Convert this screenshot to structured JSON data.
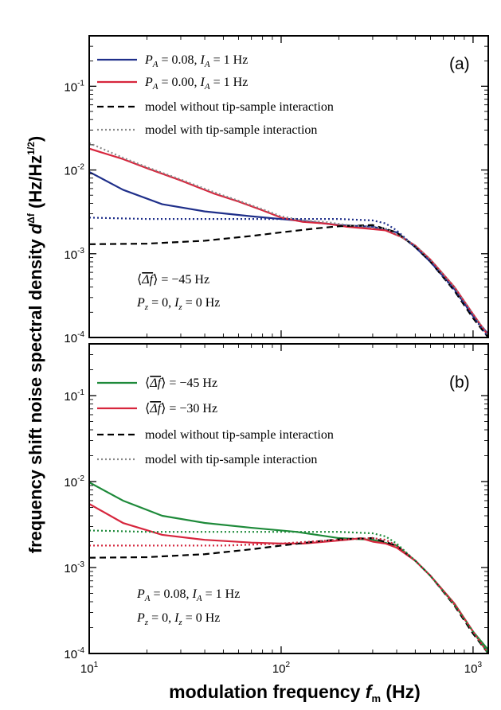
{
  "chart_data": [
    {
      "type": "line",
      "panel_label": "(a)",
      "x_scale": "log",
      "y_scale": "log",
      "xlim": [
        10,
        1200
      ],
      "ylim": [
        0.0001,
        0.4
      ],
      "series": [
        {
          "name": "P_A = 0.08,  I_A = 1 Hz",
          "color": "#1f2f8a",
          "style": "solid",
          "x": [
            10,
            15,
            24,
            40,
            70,
            120,
            200,
            300,
            400,
            500,
            600,
            800,
            1000,
            1200
          ],
          "y": [
            0.0095,
            0.0058,
            0.0039,
            0.0032,
            0.0028,
            0.0025,
            0.0022,
            0.0021,
            0.0018,
            0.0012,
            0.0008,
            0.00038,
            0.00018,
            0.00011
          ]
        },
        {
          "name": "P_A = 0.00,  I_A = 1 Hz",
          "color": "#d7263d",
          "style": "solid",
          "x": [
            10,
            15,
            20,
            30,
            45,
            60,
            80,
            100,
            130,
            170,
            220,
            280,
            350,
            420,
            500,
            600,
            800,
            1000,
            1200
          ],
          "y": [
            0.018,
            0.0135,
            0.0105,
            0.0075,
            0.0052,
            0.0042,
            0.0033,
            0.0027,
            0.0024,
            0.0023,
            0.0021,
            0.002,
            0.0019,
            0.0016,
            0.00125,
            0.00085,
            0.0004,
            0.00019,
            0.000105
          ]
        },
        {
          "name": "model without tip-sample interaction",
          "color": "#000000",
          "style": "dashed",
          "x": [
            10,
            20,
            40,
            70,
            100,
            150,
            200,
            300,
            400,
            500,
            600,
            800,
            1000,
            1200
          ],
          "y": [
            0.0013,
            0.00132,
            0.00143,
            0.00163,
            0.0018,
            0.002,
            0.00213,
            0.0022,
            0.0018,
            0.0012,
            0.0008,
            0.00036,
            0.00017,
            0.0001
          ]
        },
        {
          "name": "model with tip-sample interaction",
          "color": "#888888",
          "style": "dotted",
          "x": [
            10,
            15,
            20,
            30,
            45,
            60,
            80,
            100,
            130,
            170,
            220,
            280,
            350,
            420,
            500,
            600,
            800,
            1000,
            1200
          ],
          "y": [
            0.021,
            0.014,
            0.0108,
            0.0077,
            0.0054,
            0.0043,
            0.0034,
            0.0028,
            0.0025,
            0.0024,
            0.0022,
            0.0021,
            0.002,
            0.0016,
            0.00125,
            0.00085,
            0.0004,
            0.00019,
            0.000105
          ]
        },
        {
          "color": "#1f2f8a",
          "style": "dotted",
          "x": [
            10,
            20,
            50,
            100,
            200,
            300,
            350,
            400,
            500,
            600,
            800,
            1000,
            1200
          ],
          "y": [
            0.0027,
            0.0026,
            0.0026,
            0.0026,
            0.0026,
            0.0025,
            0.0023,
            0.0019,
            0.0012,
            0.0008,
            0.00037,
            0.00018,
            0.0001
          ]
        }
      ],
      "annotations": [
        "⟨Δf⟩ = −45 Hz",
        "P_z = 0,  I_z = 0 Hz"
      ]
    },
    {
      "type": "line",
      "panel_label": "(b)",
      "x_scale": "log",
      "y_scale": "log",
      "xlim": [
        10,
        1200
      ],
      "ylim": [
        0.0001,
        0.4
      ],
      "series": [
        {
          "name": "⟨Δf⟩ = −45 Hz",
          "color": "#1e8a3a",
          "style": "solid",
          "x": [
            10,
            15,
            24,
            40,
            70,
            120,
            200,
            300,
            400,
            500,
            600,
            800,
            1000,
            1200
          ],
          "y": [
            0.0098,
            0.006,
            0.004,
            0.0033,
            0.0029,
            0.0026,
            0.0022,
            0.0021,
            0.0018,
            0.0012,
            0.0008,
            0.00038,
            0.00018,
            0.00011
          ]
        },
        {
          "name": "⟨Δf⟩ = −30 Hz",
          "color": "#d7263d",
          "style": "solid",
          "x": [
            10,
            15,
            24,
            40,
            70,
            100,
            130,
            170,
            220,
            260,
            300,
            350,
            400,
            500,
            600,
            800,
            1000,
            1200
          ],
          "y": [
            0.0055,
            0.0033,
            0.0024,
            0.0021,
            0.00195,
            0.0019,
            0.0019,
            0.002,
            0.0021,
            0.0022,
            0.002,
            0.0019,
            0.0017,
            0.0012,
            0.0008,
            0.00038,
            0.00018,
            0.0001
          ]
        },
        {
          "name": "model without tip-sample interaction",
          "color": "#000000",
          "style": "dashed",
          "x": [
            10,
            20,
            40,
            70,
            100,
            150,
            200,
            300,
            400,
            500,
            600,
            800,
            1000,
            1200
          ],
          "y": [
            0.0013,
            0.00132,
            0.00143,
            0.00163,
            0.0018,
            0.002,
            0.00213,
            0.0022,
            0.0018,
            0.0012,
            0.0008,
            0.00036,
            0.00017,
            0.0001
          ]
        },
        {
          "name": "model with tip-sample interaction",
          "color": "#888888",
          "style": "dotted",
          "x": [
            10,
            20,
            50,
            100,
            200,
            300,
            350,
            400,
            500,
            600,
            800,
            1000,
            1200
          ],
          "y": [
            0.0018,
            0.0018,
            0.0018,
            0.0019,
            0.0021,
            0.0022,
            0.0021,
            0.0018,
            0.0012,
            0.0008,
            0.00037,
            0.00018,
            0.0001
          ]
        },
        {
          "color": "#1e8a3a",
          "style": "dotted",
          "x": [
            10,
            20,
            50,
            100,
            200,
            300,
            350,
            400,
            500,
            600,
            800,
            1000,
            1200
          ],
          "y": [
            0.0027,
            0.0026,
            0.0026,
            0.0026,
            0.0026,
            0.0025,
            0.0023,
            0.0019,
            0.0012,
            0.0008,
            0.00037,
            0.00018,
            0.0001
          ]
        },
        {
          "color": "#d7263d",
          "style": "dotted",
          "x": [
            10,
            20,
            50,
            100,
            200,
            300,
            350,
            400,
            500,
            600,
            800,
            1000,
            1200
          ],
          "y": [
            0.0018,
            0.0018,
            0.0018,
            0.0019,
            0.0021,
            0.0022,
            0.0021,
            0.0018,
            0.0012,
            0.0008,
            0.00037,
            0.00018,
            0.0001
          ]
        }
      ],
      "annotations": [
        "P_A = 0.08,  I_A = 1 Hz",
        "P_z = 0,  I_z = 0 Hz"
      ]
    }
  ],
  "y_ticks": [
    {
      "value": 0.1,
      "label_base": "10",
      "label_exp": "-1"
    },
    {
      "value": 0.01,
      "label_base": "10",
      "label_exp": "-2"
    },
    {
      "value": 0.001,
      "label_base": "10",
      "label_exp": "-3"
    },
    {
      "value": 0.0001,
      "label_base": "10",
      "label_exp": "-4"
    }
  ],
  "x_ticks": [
    {
      "value": 10,
      "label_base": "10",
      "label_exp": "1"
    },
    {
      "value": 100,
      "label_base": "10",
      "label_exp": "2"
    },
    {
      "value": 1000,
      "label_base": "10",
      "label_exp": "3"
    }
  ],
  "xlabel": {
    "text": "modulation frequency ",
    "symbol": "f",
    "sub": "m",
    "unit": " (Hz)"
  },
  "ylabel": {
    "text": "frequency shift noise spectral density ",
    "symbol": "d",
    "sup": "Δf",
    "unit": " (Hz/Hz",
    "unit_sup": "1/2",
    "close": ")"
  }
}
